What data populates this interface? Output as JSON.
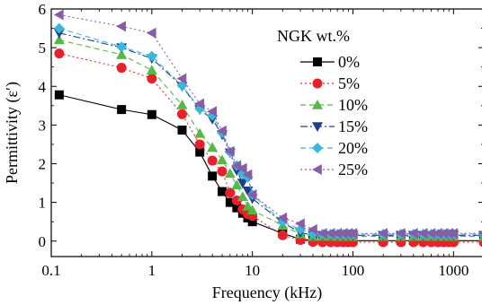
{
  "chart_data": {
    "type": "line",
    "xlabel": "Frequency (kHz)",
    "ylabel": "Permittivity (ε′)",
    "x_scale": "log",
    "xlim": [
      0.1,
      2000
    ],
    "ylim": [
      -0.4,
      6
    ],
    "x_ticks": [
      0.1,
      1,
      10,
      100,
      1000
    ],
    "x_tick_labels": [
      "0.1",
      "1",
      "10",
      "100",
      "1000"
    ],
    "y_ticks": [
      0,
      1,
      2,
      3,
      4,
      5,
      6
    ],
    "y_tick_labels": [
      "0",
      "1",
      "2",
      "3",
      "4",
      "5",
      "6"
    ],
    "grid": false,
    "legend": {
      "title": "NGK wt.%",
      "placement": "top-right"
    },
    "x": [
      0.12,
      0.5,
      1,
      2,
      3,
      4,
      5,
      6,
      7,
      8,
      9,
      10,
      20,
      30,
      40,
      50,
      60,
      70,
      80,
      90,
      100,
      200,
      300,
      400,
      500,
      600,
      700,
      800,
      900,
      1000,
      2000
    ],
    "series": [
      {
        "name": "0%",
        "color": "#000000",
        "marker": "square",
        "dash": "solid",
        "values": [
          3.78,
          3.4,
          3.27,
          2.87,
          2.3,
          1.68,
          1.28,
          1.0,
          0.86,
          0.72,
          0.6,
          0.5,
          0.2,
          0.05,
          0.02,
          0.01,
          0.01,
          0.01,
          0.01,
          0.01,
          0.01,
          0.01,
          0.01,
          0.01,
          0.01,
          0.01,
          0.01,
          0.01,
          0.01,
          0.01,
          0.01
        ]
      },
      {
        "name": "5%",
        "color": "#e8202a",
        "marker": "circle",
        "dash": "dot",
        "values": [
          4.85,
          4.48,
          4.2,
          3.28,
          2.5,
          2.08,
          1.8,
          1.25,
          1.05,
          0.82,
          0.7,
          0.65,
          0.15,
          0.03,
          -0.02,
          -0.03,
          -0.03,
          -0.03,
          -0.03,
          -0.03,
          -0.03,
          -0.03,
          -0.03,
          -0.03,
          -0.03,
          -0.03,
          -0.03,
          -0.03,
          -0.03,
          -0.03,
          -0.03
        ]
      },
      {
        "name": "10%",
        "color": "#57b846",
        "marker": "triangle-up",
        "dash": "dash",
        "values": [
          5.2,
          4.82,
          4.42,
          3.52,
          2.78,
          2.42,
          2.1,
          1.75,
          1.45,
          1.15,
          0.9,
          0.8,
          0.4,
          0.18,
          0.12,
          0.12,
          0.12,
          0.12,
          0.12,
          0.12,
          0.12,
          0.12,
          0.12,
          0.12,
          0.12,
          0.12,
          0.12,
          0.12,
          0.12,
          0.12,
          0.12
        ]
      },
      {
        "name": "15%",
        "color": "#1f3f8c",
        "marker": "triangle-down",
        "dash": "dashdot",
        "values": [
          5.38,
          5.0,
          4.72,
          4.0,
          3.4,
          3.15,
          2.75,
          2.28,
          1.82,
          1.5,
          1.3,
          1.1,
          0.48,
          0.22,
          0.15,
          0.15,
          0.15,
          0.15,
          0.15,
          0.15,
          0.15,
          0.15,
          0.15,
          0.15,
          0.15,
          0.15,
          0.15,
          0.15,
          0.15,
          0.15,
          0.15
        ]
      },
      {
        "name": "20%",
        "color": "#38b8d8",
        "marker": "diamond",
        "dash": "dash",
        "values": [
          5.5,
          5.02,
          4.78,
          4.02,
          3.42,
          3.25,
          2.8,
          2.3,
          1.95,
          1.75,
          1.65,
          1.2,
          0.5,
          0.3,
          0.18,
          0.18,
          0.18,
          0.18,
          0.18,
          0.18,
          0.18,
          0.18,
          0.18,
          0.18,
          0.18,
          0.18,
          0.18,
          0.18,
          0.18,
          0.18,
          0.18
        ]
      },
      {
        "name": "25%",
        "color": "#8a5ca8",
        "marker": "triangle-left",
        "dash": "dot",
        "values": [
          5.85,
          5.55,
          5.38,
          4.2,
          3.55,
          3.35,
          2.85,
          2.32,
          1.95,
          1.88,
          1.72,
          1.2,
          0.6,
          0.45,
          0.3,
          0.2,
          0.2,
          0.2,
          0.2,
          0.2,
          0.2,
          0.2,
          0.2,
          0.2,
          0.2,
          0.2,
          0.2,
          0.2,
          0.2,
          0.2,
          0.2
        ]
      }
    ]
  }
}
